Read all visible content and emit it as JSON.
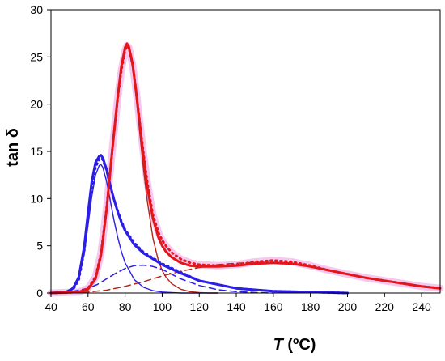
{
  "chart_data": {
    "type": "line",
    "title": "",
    "xlabel": {
      "italic": "T",
      "unit": " (ºC)"
    },
    "ylabel": "tan δ",
    "xlim": [
      40,
      250
    ],
    "ylim": [
      0,
      30
    ],
    "x_ticks": [
      40,
      60,
      80,
      100,
      120,
      140,
      160,
      180,
      200,
      220,
      240
    ],
    "y_ticks": [
      0,
      5,
      10,
      15,
      20,
      25,
      30
    ],
    "grid": false,
    "legend": "none",
    "colors": {
      "blue": "#2b1ee6",
      "red": "#e3161b",
      "brown": "#b3271a",
      "pink_band": "#f7c8ef"
    },
    "series": [
      {
        "id": "blue-measured",
        "style": "dotted",
        "color": "blue",
        "x": [
          40,
          48,
          52,
          55,
          58,
          60,
          62,
          64,
          66,
          67,
          68,
          70,
          72,
          74,
          76,
          78,
          80,
          85,
          90,
          95,
          100,
          110,
          120,
          140,
          160,
          180,
          200
        ],
        "y": [
          0,
          0.1,
          0.4,
          1.4,
          4.5,
          8,
          11.2,
          13.3,
          14.2,
          14.3,
          14.1,
          13,
          11.3,
          9.9,
          8.7,
          7.6,
          6.7,
          5.3,
          4.3,
          3.7,
          3.1,
          2.2,
          1.3,
          0.5,
          0.2,
          0.1,
          0
        ]
      },
      {
        "id": "blue-fit",
        "style": "solid-thick",
        "color": "blue",
        "x": [
          40,
          48,
          52,
          55,
          58,
          60,
          62,
          64,
          66,
          67,
          68,
          70,
          72,
          74,
          76,
          78,
          80,
          85,
          90,
          95,
          100,
          110,
          120,
          140,
          160,
          180,
          200
        ],
        "y": [
          0,
          0.1,
          0.5,
          1.7,
          5,
          8.5,
          11.8,
          13.8,
          14.5,
          14.6,
          14.3,
          13.1,
          11.4,
          9.9,
          8.6,
          7.5,
          6.6,
          5.1,
          4.2,
          3.6,
          3.0,
          2.1,
          1.3,
          0.5,
          0.2,
          0.1,
          0
        ]
      },
      {
        "id": "blue-peak1",
        "style": "solid-thin",
        "color": "blue",
        "x": [
          40,
          50,
          55,
          58,
          60,
          62,
          64,
          66,
          67,
          68,
          70,
          72,
          74,
          76,
          78,
          80,
          85,
          90,
          95,
          100,
          105,
          110,
          120,
          130
        ],
        "y": [
          0,
          0.2,
          1.5,
          4.2,
          7.2,
          10.2,
          12.5,
          13.5,
          13.6,
          13.3,
          11.8,
          9.8,
          7.7,
          5.9,
          4.4,
          3.2,
          1.4,
          0.6,
          0.25,
          0.1,
          0.05,
          0,
          0,
          0
        ]
      },
      {
        "id": "blue-peak2",
        "style": "dashed",
        "color": "blue",
        "x": [
          40,
          50,
          60,
          65,
          70,
          75,
          80,
          85,
          90,
          95,
          100,
          105,
          110,
          120,
          130,
          140,
          150,
          160
        ],
        "y": [
          0,
          0.1,
          0.5,
          0.9,
          1.5,
          2.1,
          2.6,
          2.9,
          2.95,
          2.8,
          2.5,
          2.0,
          1.5,
          0.8,
          0.35,
          0.15,
          0.05,
          0
        ]
      },
      {
        "id": "red-measured",
        "style": "dotted",
        "color": "red",
        "x": [
          40,
          55,
          60,
          64,
          67,
          70,
          73,
          76,
          78,
          80,
          81,
          82,
          84,
          86,
          88,
          90,
          92,
          95,
          98,
          100,
          102,
          105,
          110,
          115,
          120,
          130,
          140,
          150,
          160,
          170,
          180,
          190,
          200,
          210,
          220,
          230,
          240,
          250
        ],
        "y": [
          0,
          0.1,
          0.5,
          1.7,
          4.2,
          9,
          15,
          20.6,
          23.6,
          25.7,
          26.2,
          26,
          24.2,
          21.3,
          18,
          14.7,
          11.7,
          8.3,
          6.4,
          5.6,
          5.0,
          4.3,
          3.6,
          3.2,
          3.0,
          2.9,
          3.0,
          3.3,
          3.45,
          3.3,
          2.9,
          2.4,
          2.0,
          1.6,
          1.3,
          1.0,
          0.7,
          0.5
        ]
      },
      {
        "id": "red-fit",
        "style": "solid-thick",
        "color": "red",
        "x": [
          40,
          55,
          60,
          64,
          67,
          70,
          73,
          76,
          78,
          80,
          81,
          82,
          84,
          86,
          88,
          90,
          92,
          95,
          98,
          100,
          102,
          105,
          110,
          115,
          120,
          130,
          140,
          150,
          160,
          170,
          180,
          190,
          200,
          210,
          220,
          230,
          240,
          250
        ],
        "y": [
          0,
          0.1,
          0.4,
          1.5,
          4,
          8.8,
          15,
          20.8,
          24,
          26,
          26.4,
          26.1,
          24.3,
          21.2,
          17.8,
          14.3,
          11.2,
          7.9,
          5.9,
          5.0,
          4.4,
          3.8,
          3.2,
          2.9,
          2.8,
          2.8,
          2.9,
          3.1,
          3.2,
          3.1,
          2.8,
          2.4,
          2.0,
          1.6,
          1.3,
          1.0,
          0.7,
          0.5
        ]
      },
      {
        "id": "red-peak1",
        "style": "solid-thin",
        "color": "brown",
        "x": [
          40,
          55,
          60,
          64,
          67,
          70,
          73,
          76,
          78,
          80,
          81,
          82,
          84,
          86,
          88,
          90,
          92,
          95,
          98,
          100,
          102,
          105,
          110,
          115,
          120,
          125,
          130
        ],
        "y": [
          0,
          0.1,
          0.4,
          1.5,
          4,
          8.6,
          14.6,
          20.5,
          23.8,
          25.8,
          26.1,
          25.8,
          23.9,
          20.6,
          16.8,
          13,
          9.7,
          5.8,
          3.4,
          2.4,
          1.7,
          1.0,
          0.4,
          0.15,
          0.05,
          0,
          0
        ]
      },
      {
        "id": "red-peak2",
        "style": "dashed",
        "color": "brown",
        "x": [
          40,
          60,
          70,
          80,
          90,
          100,
          110,
          120,
          130,
          140,
          150,
          155,
          160,
          170,
          180,
          190,
          200,
          210,
          220,
          230,
          240,
          250
        ],
        "y": [
          0,
          0.1,
          0.3,
          0.7,
          1.2,
          1.8,
          2.3,
          2.7,
          3.0,
          3.15,
          3.25,
          3.25,
          3.2,
          3.05,
          2.8,
          2.4,
          2.0,
          1.6,
          1.3,
          1.0,
          0.7,
          0.5
        ]
      }
    ]
  }
}
